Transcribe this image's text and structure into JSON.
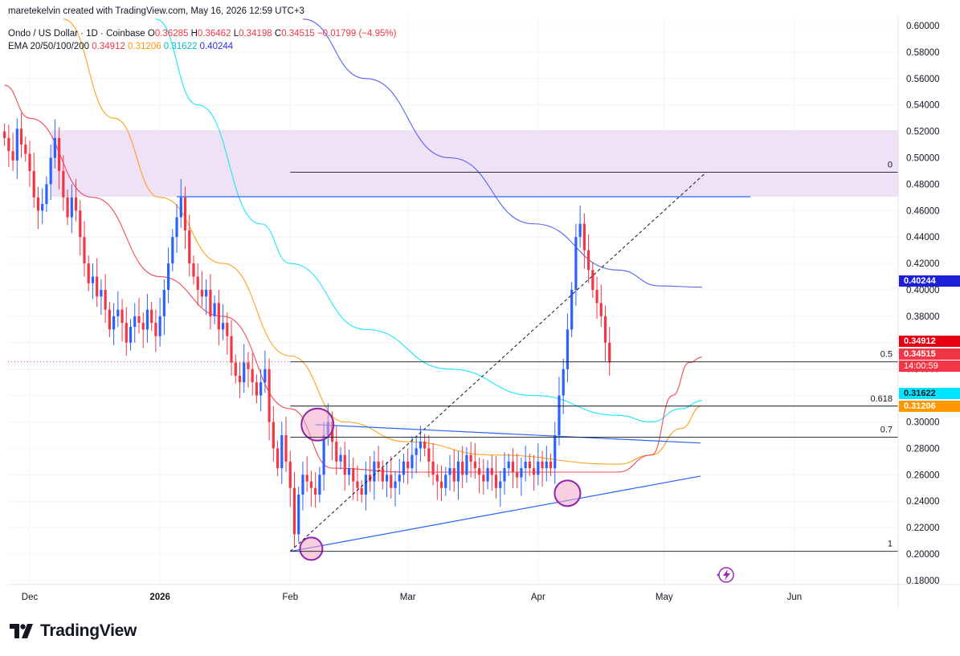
{
  "header": {
    "attribution": "maretekelvin created with TradingView.com, May 16, 2026 12:59 UTC+3",
    "symbol": "Ondo / US Dollar · 1D · Coinbase",
    "o_label": "O",
    "o_value": "0.36285",
    "h_label": "H",
    "h_value": "0.36462",
    "l_label": "L",
    "l_value": "0.34198",
    "c_label": "C",
    "c_value": "0.34515",
    "change": "−0.01799 (−4.95%)",
    "ema_label": "EMA 20/50/100/200",
    "ema20": "0.34912",
    "ema50": "0.31206",
    "ema100": "0.31622",
    "ema200": "0.40244"
  },
  "brand": {
    "name": "TradingView"
  },
  "colors": {
    "up": "#2962ff",
    "down": "#f23645",
    "ema20": "#f23645",
    "ema50": "#ff9800",
    "ema100": "#00e5ff",
    "ema200": "#3f51f5",
    "zone": "#e9d5f2",
    "circle": "#8e24aa",
    "circle_fill": "#f3a8c6"
  },
  "price_tags": {
    "ema200": "0.40244",
    "ema20": "0.34912",
    "last": "0.34515",
    "countdown": "14:00:59",
    "ema100": "0.31622",
    "ema50": "0.31206"
  },
  "chart_data": {
    "type": "candlestick",
    "ylim": [
      0.17,
      0.605
    ],
    "y_ticks": [
      "0.18000",
      "0.20000",
      "0.22000",
      "0.24000",
      "0.26000",
      "0.28000",
      "0.30000",
      "0.32000",
      "0.34000",
      "0.36000",
      "0.38000",
      "0.40000",
      "0.42000",
      "0.44000",
      "0.46000",
      "0.48000",
      "0.50000",
      "0.52000",
      "0.54000",
      "0.56000",
      "0.58000",
      "0.60000"
    ],
    "x_ticks": [
      "Dec",
      "2026",
      "Feb",
      "Mar",
      "Apr",
      "May",
      "Jun"
    ],
    "x_tick_days": [
      0,
      31,
      62,
      90,
      121,
      151,
      182
    ],
    "start_day": -6,
    "closes": [
      0.515,
      0.505,
      0.498,
      0.522,
      0.51,
      0.503,
      0.49,
      0.47,
      0.46,
      0.465,
      0.48,
      0.5,
      0.515,
      0.49,
      0.47,
      0.455,
      0.47,
      0.46,
      0.44,
      0.42,
      0.405,
      0.41,
      0.395,
      0.4,
      0.385,
      0.37,
      0.38,
      0.385,
      0.375,
      0.36,
      0.372,
      0.38,
      0.375,
      0.37,
      0.385,
      0.375,
      0.365,
      0.38,
      0.4,
      0.42,
      0.44,
      0.455,
      0.47,
      0.445,
      0.42,
      0.41,
      0.4,
      0.395,
      0.4,
      0.38,
      0.39,
      0.37,
      0.375,
      0.365,
      0.345,
      0.335,
      0.33,
      0.345,
      0.34,
      0.33,
      0.32,
      0.33,
      0.34,
      0.3,
      0.28,
      0.265,
      0.29,
      0.27,
      0.25,
      0.215,
      0.245,
      0.26,
      0.255,
      0.25,
      0.245,
      0.26,
      0.29,
      0.3,
      0.285,
      0.27,
      0.275,
      0.26,
      0.265,
      0.255,
      0.25,
      0.245,
      0.26,
      0.255,
      0.27,
      0.265,
      0.255,
      0.26,
      0.25,
      0.255,
      0.26,
      0.27,
      0.265,
      0.275,
      0.28,
      0.285,
      0.28,
      0.27,
      0.26,
      0.255,
      0.25,
      0.26,
      0.265,
      0.255,
      0.27,
      0.26,
      0.275,
      0.27,
      0.265,
      0.26,
      0.255,
      0.265,
      0.26,
      0.25,
      0.255,
      0.265,
      0.27,
      0.262,
      0.258,
      0.265,
      0.27,
      0.265,
      0.26,
      0.27,
      0.265,
      0.27,
      0.265,
      0.29,
      0.32,
      0.34,
      0.37,
      0.4,
      0.44,
      0.45,
      0.43,
      0.415,
      0.4,
      0.39,
      0.38,
      0.36,
      0.345
    ],
    "ema20_points": [
      [
        -6,
        0.555
      ],
      [
        0,
        0.53
      ],
      [
        15,
        0.47
      ],
      [
        31,
        0.41
      ],
      [
        46,
        0.38
      ],
      [
        62,
        0.31
      ],
      [
        72,
        0.265
      ],
      [
        90,
        0.262
      ],
      [
        110,
        0.262
      ],
      [
        140,
        0.262
      ],
      [
        148,
        0.275
      ],
      [
        153,
        0.32
      ],
      [
        157,
        0.345
      ],
      [
        160,
        0.349
      ]
    ],
    "ema50_points": [
      [
        8,
        0.605
      ],
      [
        20,
        0.53
      ],
      [
        31,
        0.47
      ],
      [
        46,
        0.42
      ],
      [
        62,
        0.35
      ],
      [
        75,
        0.3
      ],
      [
        90,
        0.285
      ],
      [
        110,
        0.275
      ],
      [
        140,
        0.268
      ],
      [
        148,
        0.275
      ],
      [
        155,
        0.295
      ],
      [
        160,
        0.312
      ]
    ],
    "ema100_points": [
      [
        30,
        0.605
      ],
      [
        40,
        0.54
      ],
      [
        55,
        0.45
      ],
      [
        62,
        0.42
      ],
      [
        80,
        0.37
      ],
      [
        100,
        0.34
      ],
      [
        120,
        0.32
      ],
      [
        140,
        0.305
      ],
      [
        148,
        0.3
      ],
      [
        155,
        0.31
      ],
      [
        160,
        0.316
      ]
    ],
    "ema200_points": [
      [
        65,
        0.605
      ],
      [
        80,
        0.56
      ],
      [
        100,
        0.5
      ],
      [
        120,
        0.45
      ],
      [
        140,
        0.415
      ],
      [
        150,
        0.403
      ],
      [
        160,
        0.402
      ]
    ]
  },
  "annotations": {
    "fib_levels": [
      {
        "label": "0",
        "price": 0.489
      },
      {
        "label": "0.5",
        "price": 0.3455
      },
      {
        "label": "0.618",
        "price": 0.312
      },
      {
        "label": "0.7",
        "price": 0.2885
      },
      {
        "label": "1",
        "price": 0.202
      }
    ],
    "resistance_price": 0.4705,
    "zone": [
      0.4705,
      0.521
    ]
  }
}
